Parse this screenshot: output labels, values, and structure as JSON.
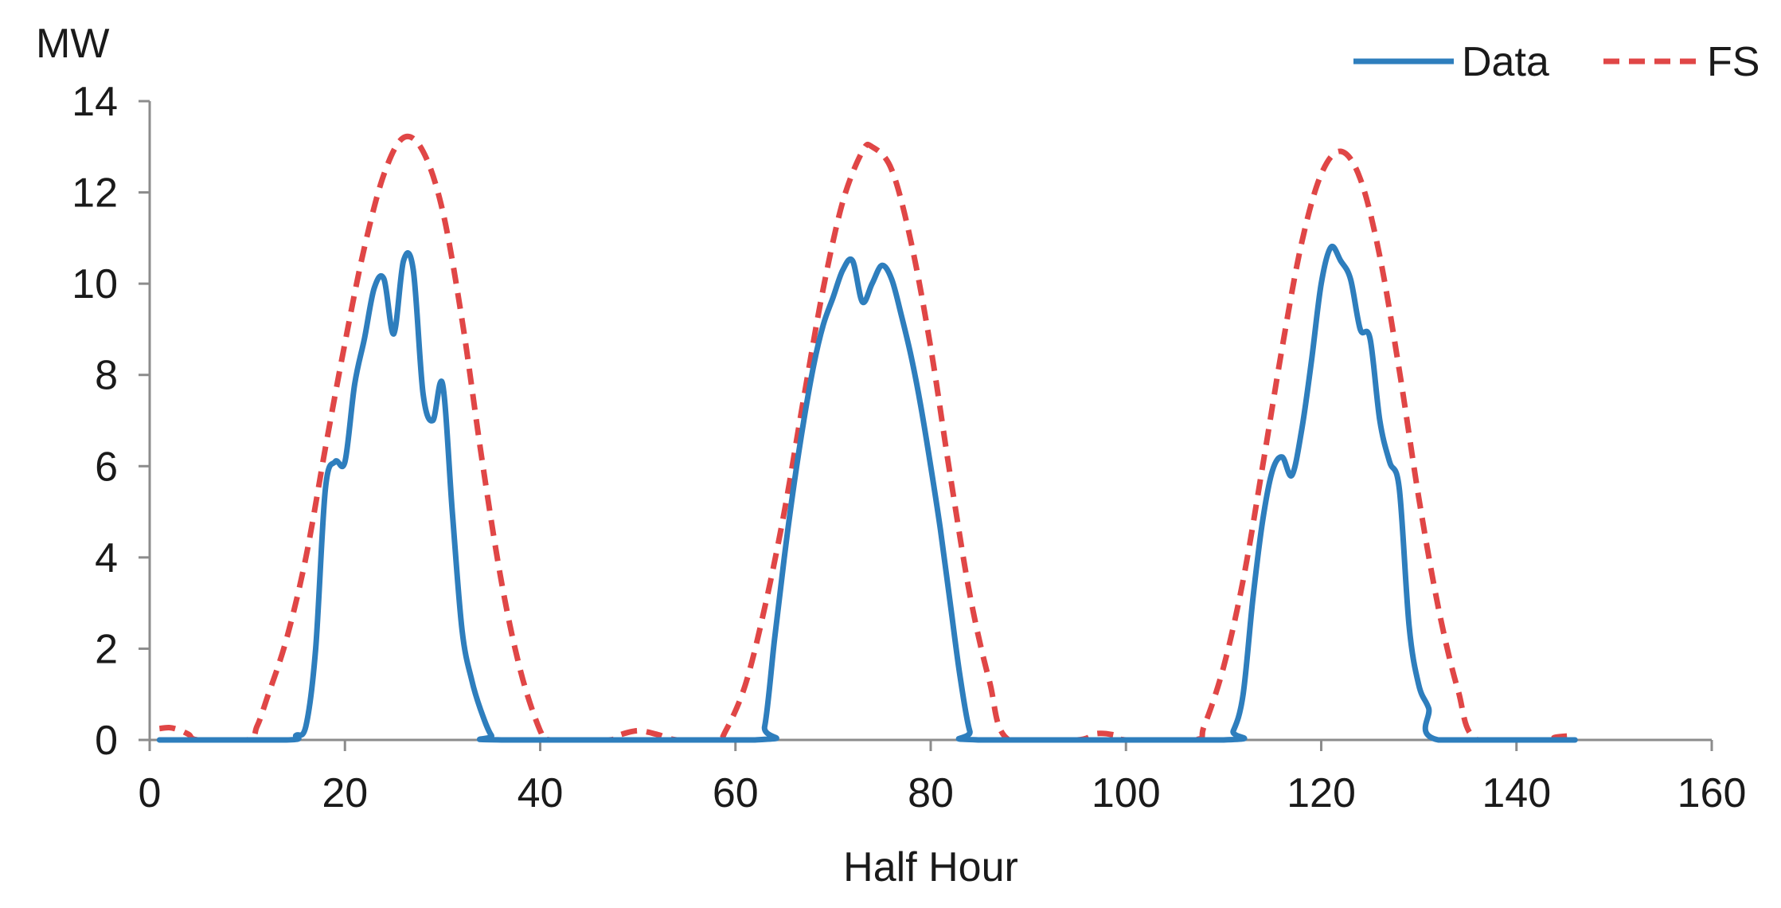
{
  "chart_data": {
    "type": "line",
    "title": "",
    "xlabel": "Half Hour",
    "ylabel": "MW",
    "xlim": [
      0,
      160
    ],
    "ylim": [
      0,
      14
    ],
    "x_ticks": [
      0,
      20,
      40,
      60,
      80,
      100,
      120,
      140,
      160
    ],
    "y_ticks": [
      0,
      2,
      4,
      6,
      8,
      10,
      12,
      14
    ],
    "grid": false,
    "legend_position": "top-right",
    "series": [
      {
        "name": "Data",
        "color": "#2e7ebd",
        "style": "solid",
        "points": [
          [
            1,
            0
          ],
          [
            14,
            0
          ],
          [
            15,
            0.1
          ],
          [
            16,
            0.3
          ],
          [
            17,
            2.0
          ],
          [
            18,
            5.5
          ],
          [
            19,
            6.1
          ],
          [
            20,
            6.1
          ],
          [
            21,
            7.8
          ],
          [
            22,
            8.8
          ],
          [
            23,
            9.9
          ],
          [
            24,
            10.1
          ],
          [
            25,
            8.9
          ],
          [
            26,
            10.5
          ],
          [
            27,
            10.3
          ],
          [
            28,
            7.6
          ],
          [
            29,
            7.0
          ],
          [
            30,
            7.8
          ],
          [
            31,
            5.0
          ],
          [
            32,
            2.4
          ],
          [
            33,
            1.3
          ],
          [
            34,
            0.6
          ],
          [
            35,
            0.1
          ],
          [
            36,
            0
          ],
          [
            62,
            0
          ],
          [
            63,
            0.3
          ],
          [
            64,
            2.2
          ],
          [
            65,
            4.0
          ],
          [
            66,
            5.6
          ],
          [
            67,
            7.0
          ],
          [
            68,
            8.2
          ],
          [
            69,
            9.1
          ],
          [
            70,
            9.7
          ],
          [
            71,
            10.3
          ],
          [
            72,
            10.5
          ],
          [
            73,
            9.6
          ],
          [
            74,
            10.0
          ],
          [
            75,
            10.4
          ],
          [
            76,
            10.1
          ],
          [
            77,
            9.3
          ],
          [
            78,
            8.4
          ],
          [
            79,
            7.3
          ],
          [
            80,
            6.0
          ],
          [
            81,
            4.6
          ],
          [
            82,
            3.0
          ],
          [
            83,
            1.4
          ],
          [
            84,
            0.2
          ],
          [
            85,
            0
          ],
          [
            110,
            0
          ],
          [
            111,
            0.2
          ],
          [
            112,
            1.0
          ],
          [
            113,
            3.1
          ],
          [
            114,
            4.8
          ],
          [
            115,
            5.9
          ],
          [
            116,
            6.2
          ],
          [
            117,
            5.8
          ],
          [
            118,
            6.8
          ],
          [
            119,
            8.3
          ],
          [
            120,
            10.0
          ],
          [
            121,
            10.8
          ],
          [
            122,
            10.5
          ],
          [
            123,
            10.1
          ],
          [
            124,
            9.0
          ],
          [
            125,
            8.8
          ],
          [
            126,
            7.0
          ],
          [
            127,
            6.1
          ],
          [
            128,
            5.5
          ],
          [
            129,
            2.5
          ],
          [
            130,
            1.2
          ],
          [
            131,
            0.7
          ],
          [
            132,
            0
          ],
          [
            146,
            0
          ]
        ]
      },
      {
        "name": "FS",
        "color": "#e04646",
        "style": "dashed",
        "points": [
          [
            1,
            0.25
          ],
          [
            2,
            0.27
          ],
          [
            3,
            0.22
          ],
          [
            4,
            0.12
          ],
          [
            5,
            0
          ],
          [
            10,
            0
          ],
          [
            11,
            0.3
          ],
          [
            12,
            0.9
          ],
          [
            14,
            2.2
          ],
          [
            16,
            4.0
          ],
          [
            18,
            6.4
          ],
          [
            20,
            8.7
          ],
          [
            22,
            10.8
          ],
          [
            24,
            12.4
          ],
          [
            26,
            13.2
          ],
          [
            28,
            12.9
          ],
          [
            30,
            11.6
          ],
          [
            32,
            9.2
          ],
          [
            34,
            6.2
          ],
          [
            36,
            3.5
          ],
          [
            38,
            1.5
          ],
          [
            40,
            0.2
          ],
          [
            41,
            0
          ],
          [
            47,
            0
          ],
          [
            48,
            0.1
          ],
          [
            50,
            0.2
          ],
          [
            52,
            0.12
          ],
          [
            54,
            0
          ],
          [
            58,
            0
          ],
          [
            59,
            0.2
          ],
          [
            61,
            1.2
          ],
          [
            63,
            2.9
          ],
          [
            65,
            5.0
          ],
          [
            67,
            7.5
          ],
          [
            69,
            9.9
          ],
          [
            71,
            11.8
          ],
          [
            73,
            12.9
          ],
          [
            74,
            13.0
          ],
          [
            76,
            12.5
          ],
          [
            78,
            10.9
          ],
          [
            80,
            8.6
          ],
          [
            82,
            5.8
          ],
          [
            84,
            3.2
          ],
          [
            86,
            1.3
          ],
          [
            88,
            0
          ],
          [
            95,
            0
          ],
          [
            97,
            0.14
          ],
          [
            99,
            0.1
          ],
          [
            100,
            0
          ],
          [
            107,
            0
          ],
          [
            108,
            0.3
          ],
          [
            110,
            1.6
          ],
          [
            112,
            3.5
          ],
          [
            114,
            6.0
          ],
          [
            116,
            8.6
          ],
          [
            118,
            10.9
          ],
          [
            120,
            12.4
          ],
          [
            122,
            12.9
          ],
          [
            124,
            12.3
          ],
          [
            126,
            10.6
          ],
          [
            128,
            8.1
          ],
          [
            130,
            5.3
          ],
          [
            132,
            2.9
          ],
          [
            134,
            1.1
          ],
          [
            136,
            0
          ],
          [
            143,
            0
          ],
          [
            144,
            0.06
          ],
          [
            146,
            0.1
          ]
        ]
      }
    ]
  }
}
